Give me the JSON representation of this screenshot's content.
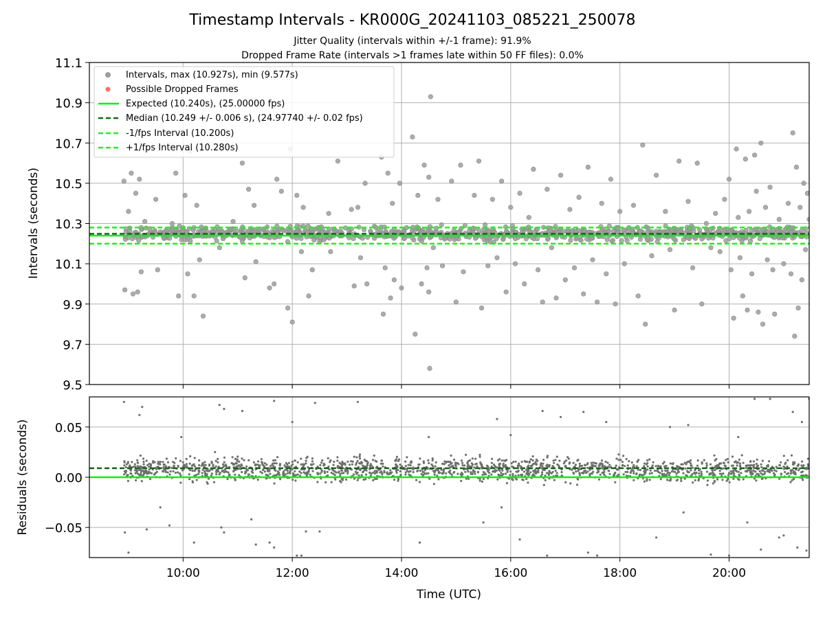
{
  "figure": {
    "title": "Timestamp Intervals - KR000G_20241103_085221_250078",
    "subtitle_1": "Jitter Quality (intervals within +/-1 frame): 91.9%",
    "subtitle_2": "Dropped Frame Rate (intervals >1 frames late within 50 FF files): 0.0%",
    "xlabel": "Time (UTC)"
  },
  "chart_data": [
    {
      "type": "scatter",
      "name": "intervals",
      "ylabel": "Intervals (seconds)",
      "xlim": [
        "08:17",
        "21:28"
      ],
      "ylim": [
        9.5,
        11.1
      ],
      "yticks": [
        9.5,
        9.7,
        9.9,
        10.1,
        10.3,
        10.5,
        10.7,
        10.9,
        11.1
      ],
      "ytick_labels": [
        "9.5",
        "9.7",
        "9.9",
        "10.1",
        "10.3",
        "10.5",
        "10.7",
        "10.9",
        "11.1"
      ],
      "xticks": [
        "10:00",
        "12:00",
        "14:00",
        "16:00",
        "18:00",
        "20:00"
      ],
      "grid": true,
      "legend": {
        "position": "top-left",
        "entries": [
          "Intervals, max (10.927s), min (9.577s)",
          "Possible Dropped Frames",
          "Expected (10.240s), (25.00000 fps)",
          "Median (10.249 +/- 0.006 s), (24.97740 +/- 0.02 fps)",
          "-1/fps Interval (10.200s)",
          "+1/fps Interval (10.280s)"
        ]
      },
      "time_range": [
        "08:55",
        "21:28"
      ],
      "intervals_max": 10.927,
      "intervals_min": 9.577,
      "reference_lines": {
        "expected": 10.24,
        "median": 10.249,
        "minus_one_frame": 10.2,
        "plus_one_frame": 10.28
      },
      "intervals_core_band": [
        10.2,
        10.3
      ],
      "outlier_points": [
        {
          "t": "08:55",
          "y": 10.51
        },
        {
          "t": "08:56",
          "y": 9.97
        },
        {
          "t": "09:00",
          "y": 10.36
        },
        {
          "t": "09:03",
          "y": 10.55
        },
        {
          "t": "09:05",
          "y": 9.95
        },
        {
          "t": "09:08",
          "y": 10.45
        },
        {
          "t": "09:10",
          "y": 9.96
        },
        {
          "t": "09:12",
          "y": 10.52
        },
        {
          "t": "09:14",
          "y": 10.06
        },
        {
          "t": "09:18",
          "y": 10.31
        },
        {
          "t": "09:30",
          "y": 10.42
        },
        {
          "t": "09:32",
          "y": 10.07
        },
        {
          "t": "09:48",
          "y": 10.3
        },
        {
          "t": "09:52",
          "y": 10.55
        },
        {
          "t": "09:55",
          "y": 9.94
        },
        {
          "t": "10:02",
          "y": 10.44
        },
        {
          "t": "10:05",
          "y": 10.05
        },
        {
          "t": "10:08",
          "y": 10.66
        },
        {
          "t": "10:12",
          "y": 9.94
        },
        {
          "t": "10:15",
          "y": 10.39
        },
        {
          "t": "10:18",
          "y": 10.12
        },
        {
          "t": "10:22",
          "y": 9.84
        },
        {
          "t": "10:40",
          "y": 10.18
        },
        {
          "t": "10:55",
          "y": 10.31
        },
        {
          "t": "11:05",
          "y": 10.6
        },
        {
          "t": "11:08",
          "y": 10.03
        },
        {
          "t": "11:12",
          "y": 10.47
        },
        {
          "t": "11:18",
          "y": 10.39
        },
        {
          "t": "11:20",
          "y": 10.11
        },
        {
          "t": "11:35",
          "y": 9.98
        },
        {
          "t": "11:40",
          "y": 10.0
        },
        {
          "t": "11:43",
          "y": 10.52
        },
        {
          "t": "11:48",
          "y": 10.46
        },
        {
          "t": "11:55",
          "y": 9.88
        },
        {
          "t": "11:58",
          "y": 10.67
        },
        {
          "t": "12:00",
          "y": 9.81
        },
        {
          "t": "12:05",
          "y": 10.44
        },
        {
          "t": "12:10",
          "y": 10.16
        },
        {
          "t": "12:12",
          "y": 10.38
        },
        {
          "t": "12:18",
          "y": 9.94
        },
        {
          "t": "12:22",
          "y": 10.07
        },
        {
          "t": "12:30",
          "y": 10.21
        },
        {
          "t": "12:40",
          "y": 10.35
        },
        {
          "t": "12:42",
          "y": 10.16
        },
        {
          "t": "12:50",
          "y": 10.61
        },
        {
          "t": "13:05",
          "y": 10.37
        },
        {
          "t": "13:08",
          "y": 9.99
        },
        {
          "t": "13:12",
          "y": 10.38
        },
        {
          "t": "13:15",
          "y": 10.13
        },
        {
          "t": "13:20",
          "y": 10.5
        },
        {
          "t": "13:22",
          "y": 10.0
        },
        {
          "t": "13:32",
          "y": 10.28
        },
        {
          "t": "13:38",
          "y": 10.63
        },
        {
          "t": "13:40",
          "y": 9.85
        },
        {
          "t": "13:42",
          "y": 10.08
        },
        {
          "t": "13:45",
          "y": 10.55
        },
        {
          "t": "13:48",
          "y": 9.93
        },
        {
          "t": "13:50",
          "y": 10.4
        },
        {
          "t": "13:52",
          "y": 10.02
        },
        {
          "t": "13:58",
          "y": 10.5
        },
        {
          "t": "14:00",
          "y": 9.98
        },
        {
          "t": "14:12",
          "y": 10.73
        },
        {
          "t": "14:15",
          "y": 9.75
        },
        {
          "t": "14:18",
          "y": 10.44
        },
        {
          "t": "14:22",
          "y": 10.0
        },
        {
          "t": "14:25",
          "y": 10.59
        },
        {
          "t": "14:28",
          "y": 10.08
        },
        {
          "t": "14:30",
          "y": 10.53
        },
        {
          "t": "14:30",
          "y": 9.96
        },
        {
          "t": "14:31",
          "y": 9.58
        },
        {
          "t": "14:32",
          "y": 10.93
        },
        {
          "t": "14:35",
          "y": 10.18
        },
        {
          "t": "14:40",
          "y": 10.42
        },
        {
          "t": "14:45",
          "y": 10.09
        },
        {
          "t": "14:55",
          "y": 10.51
        },
        {
          "t": "15:00",
          "y": 9.91
        },
        {
          "t": "15:05",
          "y": 10.59
        },
        {
          "t": "15:08",
          "y": 10.06
        },
        {
          "t": "15:20",
          "y": 10.44
        },
        {
          "t": "15:25",
          "y": 10.61
        },
        {
          "t": "15:28",
          "y": 9.88
        },
        {
          "t": "15:35",
          "y": 10.09
        },
        {
          "t": "15:40",
          "y": 10.42
        },
        {
          "t": "15:45",
          "y": 10.13
        },
        {
          "t": "15:50",
          "y": 10.51
        },
        {
          "t": "15:55",
          "y": 9.96
        },
        {
          "t": "16:00",
          "y": 10.38
        },
        {
          "t": "16:05",
          "y": 10.1
        },
        {
          "t": "16:10",
          "y": 10.45
        },
        {
          "t": "16:15",
          "y": 10.0
        },
        {
          "t": "16:20",
          "y": 10.33
        },
        {
          "t": "16:25",
          "y": 10.57
        },
        {
          "t": "16:30",
          "y": 10.07
        },
        {
          "t": "16:35",
          "y": 9.91
        },
        {
          "t": "16:40",
          "y": 10.47
        },
        {
          "t": "16:45",
          "y": 10.18
        },
        {
          "t": "16:50",
          "y": 9.93
        },
        {
          "t": "16:55",
          "y": 10.54
        },
        {
          "t": "17:00",
          "y": 10.02
        },
        {
          "t": "17:05",
          "y": 10.37
        },
        {
          "t": "17:10",
          "y": 10.08
        },
        {
          "t": "17:15",
          "y": 10.43
        },
        {
          "t": "17:20",
          "y": 9.95
        },
        {
          "t": "17:25",
          "y": 10.58
        },
        {
          "t": "17:30",
          "y": 10.12
        },
        {
          "t": "17:35",
          "y": 9.91
        },
        {
          "t": "17:40",
          "y": 10.4
        },
        {
          "t": "17:45",
          "y": 10.05
        },
        {
          "t": "17:50",
          "y": 10.52
        },
        {
          "t": "17:55",
          "y": 9.9
        },
        {
          "t": "18:00",
          "y": 10.36
        },
        {
          "t": "18:05",
          "y": 10.1
        },
        {
          "t": "18:10",
          "y": 10.28
        },
        {
          "t": "18:15",
          "y": 10.39
        },
        {
          "t": "18:20",
          "y": 9.94
        },
        {
          "t": "18:25",
          "y": 10.69
        },
        {
          "t": "18:28",
          "y": 9.8
        },
        {
          "t": "18:35",
          "y": 10.14
        },
        {
          "t": "18:40",
          "y": 10.54
        },
        {
          "t": "18:50",
          "y": 10.36
        },
        {
          "t": "18:55",
          "y": 10.17
        },
        {
          "t": "19:00",
          "y": 9.87
        },
        {
          "t": "19:05",
          "y": 10.61
        },
        {
          "t": "19:10",
          "y": 10.22
        },
        {
          "t": "19:15",
          "y": 10.41
        },
        {
          "t": "19:20",
          "y": 10.08
        },
        {
          "t": "19:25",
          "y": 10.6
        },
        {
          "t": "19:30",
          "y": 9.9
        },
        {
          "t": "19:35",
          "y": 10.3
        },
        {
          "t": "19:40",
          "y": 10.18
        },
        {
          "t": "19:45",
          "y": 10.35
        },
        {
          "t": "19:50",
          "y": 10.16
        },
        {
          "t": "19:55",
          "y": 10.42
        },
        {
          "t": "20:00",
          "y": 10.52
        },
        {
          "t": "20:02",
          "y": 10.07
        },
        {
          "t": "20:05",
          "y": 9.83
        },
        {
          "t": "20:08",
          "y": 10.67
        },
        {
          "t": "20:10",
          "y": 10.33
        },
        {
          "t": "20:12",
          "y": 10.13
        },
        {
          "t": "20:15",
          "y": 9.94
        },
        {
          "t": "20:18",
          "y": 10.62
        },
        {
          "t": "20:20",
          "y": 9.87
        },
        {
          "t": "20:22",
          "y": 10.36
        },
        {
          "t": "20:25",
          "y": 10.05
        },
        {
          "t": "20:28",
          "y": 10.64
        },
        {
          "t": "20:30",
          "y": 10.46
        },
        {
          "t": "20:32",
          "y": 9.86
        },
        {
          "t": "20:35",
          "y": 10.7
        },
        {
          "t": "20:37",
          "y": 9.8
        },
        {
          "t": "20:40",
          "y": 10.38
        },
        {
          "t": "20:42",
          "y": 10.12
        },
        {
          "t": "20:45",
          "y": 10.48
        },
        {
          "t": "20:48",
          "y": 10.07
        },
        {
          "t": "20:50",
          "y": 9.85
        },
        {
          "t": "20:55",
          "y": 10.32
        },
        {
          "t": "21:00",
          "y": 10.1
        },
        {
          "t": "21:05",
          "y": 10.4
        },
        {
          "t": "21:08",
          "y": 10.05
        },
        {
          "t": "21:10",
          "y": 10.75
        },
        {
          "t": "21:12",
          "y": 9.74
        },
        {
          "t": "21:14",
          "y": 10.58
        },
        {
          "t": "21:16",
          "y": 9.88
        },
        {
          "t": "21:18",
          "y": 10.38
        },
        {
          "t": "21:20",
          "y": 10.02
        },
        {
          "t": "21:22",
          "y": 10.5
        },
        {
          "t": "21:24",
          "y": 10.17
        },
        {
          "t": "21:26",
          "y": 10.45
        },
        {
          "t": "21:28",
          "y": 10.32
        }
      ]
    },
    {
      "type": "scatter",
      "name": "residuals",
      "ylabel": "Residuals (seconds)",
      "xlim": [
        "08:17",
        "21:28"
      ],
      "ylim": [
        -0.08,
        0.08
      ],
      "yticks": [
        -0.05,
        0.0,
        0.05
      ],
      "ytick_labels": [
        "−0.05",
        "0.00",
        "0.05"
      ],
      "xticks": [
        "10:00",
        "12:00",
        "14:00",
        "16:00",
        "18:00",
        "20:00"
      ],
      "xtick_labels": [
        "10:00",
        "12:00",
        "14:00",
        "16:00",
        "18:00",
        "20:00"
      ],
      "grid": true,
      "reference_lines": {
        "zero": 0.0,
        "median_offset": 0.009
      },
      "residuals_core_band": [
        -0.01,
        0.025
      ],
      "outlier_points": [
        {
          "t": "08:55",
          "y": 0.075
        },
        {
          "t": "08:56",
          "y": -0.055
        },
        {
          "t": "09:00",
          "y": -0.075
        },
        {
          "t": "09:12",
          "y": 0.062
        },
        {
          "t": "09:15",
          "y": 0.07
        },
        {
          "t": "09:20",
          "y": -0.052
        },
        {
          "t": "09:35",
          "y": -0.03
        },
        {
          "t": "09:45",
          "y": -0.048
        },
        {
          "t": "09:58",
          "y": 0.04
        },
        {
          "t": "10:12",
          "y": -0.065
        },
        {
          "t": "10:35",
          "y": 0.025
        },
        {
          "t": "10:40",
          "y": 0.072
        },
        {
          "t": "10:42",
          "y": -0.05
        },
        {
          "t": "10:45",
          "y": 0.068
        },
        {
          "t": "10:45",
          "y": -0.055
        },
        {
          "t": "11:05",
          "y": 0.066
        },
        {
          "t": "11:15",
          "y": -0.042
        },
        {
          "t": "11:20",
          "y": -0.067
        },
        {
          "t": "11:35",
          "y": -0.065
        },
        {
          "t": "11:40",
          "y": 0.076
        },
        {
          "t": "11:40",
          "y": -0.07
        },
        {
          "t": "12:00",
          "y": 0.055
        },
        {
          "t": "12:05",
          "y": -0.078
        },
        {
          "t": "12:10",
          "y": -0.078
        },
        {
          "t": "12:15",
          "y": -0.054
        },
        {
          "t": "12:25",
          "y": 0.074
        },
        {
          "t": "12:30",
          "y": -0.054
        },
        {
          "t": "13:12",
          "y": 0.075
        },
        {
          "t": "14:20",
          "y": -0.065
        },
        {
          "t": "14:30",
          "y": 0.04
        },
        {
          "t": "15:30",
          "y": -0.045
        },
        {
          "t": "15:45",
          "y": 0.058
        },
        {
          "t": "15:50",
          "y": -0.03
        },
        {
          "t": "16:00",
          "y": 0.042
        },
        {
          "t": "16:10",
          "y": -0.062
        },
        {
          "t": "16:35",
          "y": 0.066
        },
        {
          "t": "16:40",
          "y": -0.078
        },
        {
          "t": "16:55",
          "y": 0.06
        },
        {
          "t": "17:20",
          "y": 0.065
        },
        {
          "t": "17:25",
          "y": -0.075
        },
        {
          "t": "17:35",
          "y": -0.078
        },
        {
          "t": "17:45",
          "y": 0.055
        },
        {
          "t": "18:40",
          "y": -0.06
        },
        {
          "t": "18:55",
          "y": 0.05
        },
        {
          "t": "19:10",
          "y": -0.035
        },
        {
          "t": "19:15",
          "y": 0.052
        },
        {
          "t": "19:40",
          "y": -0.077
        },
        {
          "t": "20:00",
          "y": -0.078
        },
        {
          "t": "20:10",
          "y": 0.04
        },
        {
          "t": "20:20",
          "y": -0.045
        },
        {
          "t": "20:28",
          "y": 0.078
        },
        {
          "t": "20:35",
          "y": -0.072
        },
        {
          "t": "20:45",
          "y": 0.078
        },
        {
          "t": "20:55",
          "y": -0.06
        },
        {
          "t": "21:00",
          "y": -0.058
        },
        {
          "t": "21:10",
          "y": 0.065
        },
        {
          "t": "21:15",
          "y": -0.07
        },
        {
          "t": "21:20",
          "y": 0.055
        },
        {
          "t": "21:25",
          "y": -0.073
        },
        {
          "t": "21:28",
          "y": 0.078
        }
      ]
    }
  ],
  "colors": {
    "intervals_points": "#9e9e9e",
    "intervals_points_edge": "#8a8a8a",
    "dropped_frames": "#ff6b6b",
    "expected_line": "#11ee11",
    "median_line": "#116611",
    "fps_interval_lines": "#22ee22",
    "residual_points": "#6f6f6f",
    "grid": "#b0b0b0"
  }
}
